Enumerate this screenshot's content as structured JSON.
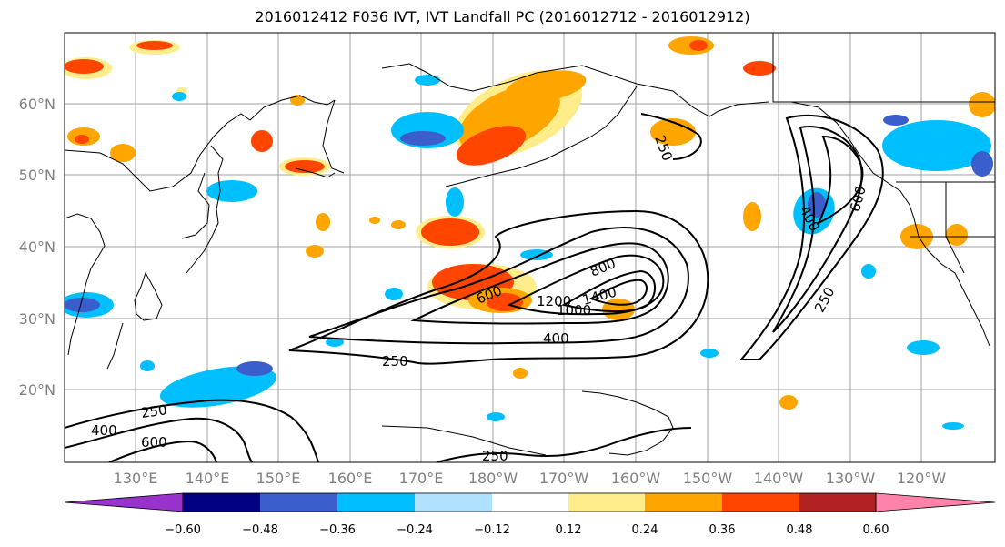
{
  "title": "2016012412 F036 IVT, IVT Landfall PC (2016012712 - 2016012912)",
  "map": {
    "lat_ticks": [
      "60°N",
      "50°N",
      "40°N",
      "30°N",
      "20°N"
    ],
    "lon_ticks": [
      "130°E",
      "140°E",
      "150°E",
      "160°E",
      "170°E",
      "180°W",
      "170°W",
      "160°W",
      "150°W",
      "140°W",
      "130°W",
      "120°W"
    ],
    "contour_labels": [
      "250",
      "400",
      "600",
      "800",
      "1000",
      "1200",
      "1400",
      "250",
      "400",
      "600",
      "250",
      "250",
      "400",
      "600",
      "250"
    ]
  },
  "colorbar": {
    "ticks": [
      "−0.60",
      "−0.48",
      "−0.36",
      "−0.24",
      "−0.12",
      "0.12",
      "0.24",
      "0.36",
      "0.48",
      "0.60"
    ],
    "colors": [
      "#9932cc",
      "#000080",
      "#3a5fcd",
      "#00bfff",
      "#b0e2ff",
      "#ffffff",
      "#ffec8b",
      "#ffa500",
      "#ff4500",
      "#b22222",
      "#ff82ab"
    ]
  }
}
